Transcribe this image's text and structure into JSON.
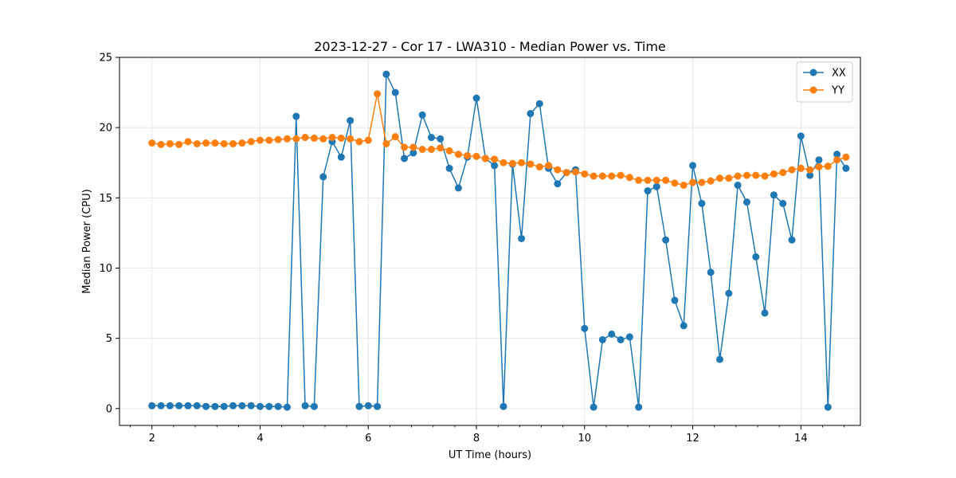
{
  "chart_data": {
    "type": "line",
    "title": "2023-12-27 - Cor 17 - LWA310 - Median Power vs. Time",
    "xlabel": "UT Time (hours)",
    "ylabel": "Median Power (CPU)",
    "xlim": [
      1.4,
      15.1
    ],
    "ylim": [
      -1.2,
      25
    ],
    "xticks": [
      2,
      4,
      6,
      8,
      10,
      12,
      14
    ],
    "yticks": [
      0,
      5,
      10,
      15,
      20,
      25
    ],
    "x_minor_step": 0.4,
    "grid": true,
    "legend_position": "top-right",
    "x": [
      2.0,
      2.167,
      2.333,
      2.5,
      2.667,
      2.833,
      3.0,
      3.167,
      3.333,
      3.5,
      3.667,
      3.833,
      4.0,
      4.167,
      4.333,
      4.5,
      4.667,
      4.833,
      5.0,
      5.167,
      5.333,
      5.5,
      5.667,
      5.833,
      6.0,
      6.167,
      6.333,
      6.5,
      6.667,
      6.833,
      7.0,
      7.167,
      7.333,
      7.5,
      7.667,
      7.833,
      8.0,
      8.167,
      8.333,
      8.5,
      8.667,
      8.833,
      9.0,
      9.167,
      9.333,
      9.5,
      9.667,
      9.833,
      10.0,
      10.167,
      10.333,
      10.5,
      10.667,
      10.833,
      11.0,
      11.167,
      11.333,
      11.5,
      11.667,
      11.833,
      12.0,
      12.167,
      12.333,
      12.5,
      12.667,
      12.833,
      13.0,
      13.167,
      13.333,
      13.5,
      13.667,
      13.833,
      14.0,
      14.167,
      14.333,
      14.5,
      14.667,
      14.833
    ],
    "series": [
      {
        "name": "XX",
        "color": "#1f77b4",
        "values": [
          0.2,
          0.2,
          0.2,
          0.2,
          0.2,
          0.2,
          0.15,
          0.15,
          0.15,
          0.2,
          0.2,
          0.2,
          0.15,
          0.15,
          0.15,
          0.1,
          20.8,
          0.2,
          0.15,
          16.5,
          19.0,
          17.9,
          20.5,
          0.15,
          0.2,
          0.15,
          23.8,
          22.5,
          17.8,
          18.2,
          20.9,
          19.3,
          19.2,
          17.1,
          15.7,
          17.9,
          22.1,
          17.8,
          17.3,
          0.15,
          17.4,
          12.1,
          21.0,
          21.7,
          17.1,
          16.0,
          16.8,
          17.0,
          5.7,
          0.1,
          4.9,
          5.3,
          4.9,
          5.1,
          0.1,
          15.5,
          15.8,
          12.0,
          7.7,
          5.9,
          17.3,
          14.6,
          9.7,
          3.5,
          8.2,
          15.9,
          14.7,
          10.8,
          6.8,
          15.2,
          14.6,
          12.0,
          19.4,
          16.6,
          17.7,
          0.1,
          18.1,
          17.1
        ]
      },
      {
        "name": "YY",
        "color": "#ff7f0e",
        "values": [
          18.9,
          18.8,
          18.85,
          18.8,
          19.0,
          18.85,
          18.9,
          18.9,
          18.85,
          18.85,
          18.9,
          19.0,
          19.1,
          19.1,
          19.15,
          19.2,
          19.2,
          19.3,
          19.25,
          19.2,
          19.3,
          19.25,
          19.2,
          19.0,
          19.1,
          22.4,
          18.85,
          19.35,
          18.6,
          18.6,
          18.45,
          18.45,
          18.55,
          18.35,
          18.1,
          18.0,
          17.95,
          17.8,
          17.75,
          17.5,
          17.45,
          17.5,
          17.4,
          17.2,
          17.3,
          17.0,
          16.8,
          16.85,
          16.7,
          16.55,
          16.55,
          16.55,
          16.6,
          16.45,
          16.25,
          16.25,
          16.25,
          16.25,
          16.05,
          15.9,
          16.1,
          16.1,
          16.2,
          16.4,
          16.4,
          16.55,
          16.6,
          16.6,
          16.55,
          16.7,
          16.8,
          17.0,
          17.1,
          17.0,
          17.2,
          17.25,
          17.7,
          17.9
        ]
      }
    ]
  }
}
